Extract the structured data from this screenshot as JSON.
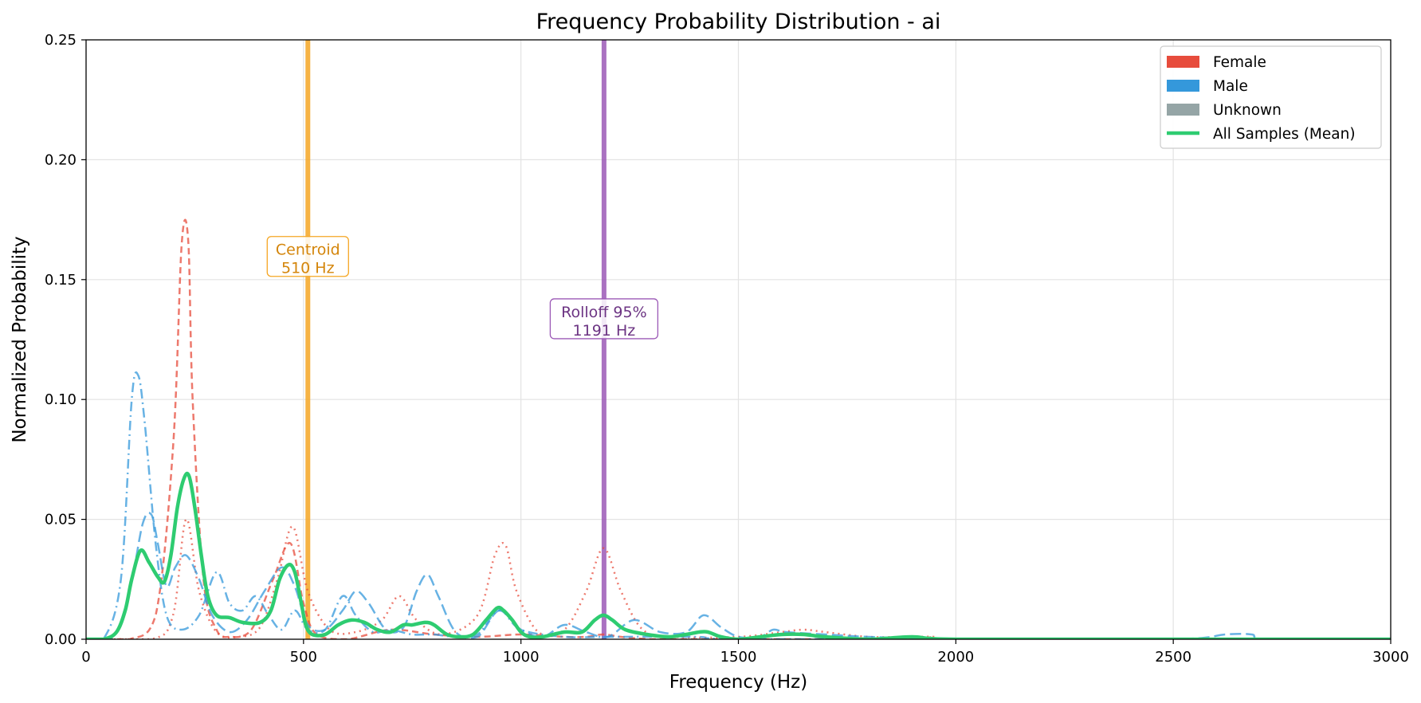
{
  "chart_data": {
    "type": "line",
    "title": "Frequency Probability Distribution - ai",
    "xlabel": "Frequency (Hz)",
    "ylabel": "Normalized Probability",
    "xlim": [
      0,
      3000
    ],
    "ylim": [
      0,
      0.25
    ],
    "xticks": [
      0,
      500,
      1000,
      1500,
      2000,
      2500,
      3000
    ],
    "yticks": [
      0.0,
      0.05,
      0.1,
      0.15,
      0.2,
      0.25
    ],
    "ytick_labels": [
      "0.00",
      "0.05",
      "0.10",
      "0.15",
      "0.20",
      "0.25"
    ],
    "grid": true,
    "legend_position": "top-right",
    "legend": [
      {
        "label": "Female",
        "color": "#e74c3c",
        "kind": "patch"
      },
      {
        "label": "Male",
        "color": "#3498db",
        "kind": "patch"
      },
      {
        "label": "Unknown",
        "color": "#95a5a6",
        "kind": "patch"
      },
      {
        "label": "All Samples (Mean)",
        "color": "#2ecc71",
        "kind": "line"
      }
    ],
    "vlines": [
      {
        "x": 510,
        "color": "#f5a623",
        "text_color": "#d4850a",
        "label": "Centroid\n510 Hz",
        "label_y": 0.159
      },
      {
        "x": 1191,
        "color": "#9b59b6",
        "text_color": "#6c3483",
        "label": "Rolloff 95%\n1191 Hz",
        "label_y": 0.133
      }
    ],
    "series": [
      {
        "group": "Female",
        "color": "#e74c3c",
        "dash": "8,5",
        "width": 2.5,
        "x": [
          0,
          100,
          160,
          200,
          220,
          235,
          245,
          270,
          300,
          330,
          380,
          430,
          470,
          500,
          530,
          600,
          700,
          800,
          900,
          1000,
          1100,
          1150,
          1190,
          1230,
          1300,
          1400,
          1500,
          2000,
          3000
        ],
        "y": [
          0,
          0.0,
          0.01,
          0.08,
          0.165,
          0.166,
          0.1,
          0.025,
          0.004,
          0.001,
          0.004,
          0.025,
          0.04,
          0.015,
          0.002,
          0.0,
          0.004,
          0.002,
          0.001,
          0.002,
          0.001,
          0.001,
          0.002,
          0.001,
          0.0,
          0.0,
          0.0,
          0.0,
          0.0
        ]
      },
      {
        "group": "Female",
        "color": "#e74c3c",
        "dash": "2,5",
        "width": 2.5,
        "x": [
          0,
          150,
          200,
          230,
          260,
          300,
          350,
          400,
          440,
          475,
          510,
          560,
          620,
          680,
          720,
          760,
          820,
          900,
          940,
          965,
          990,
          1040,
          1100,
          1150,
          1190,
          1230,
          1280,
          1350,
          1500,
          1600,
          1650,
          1700,
          1800,
          1900,
          1950,
          2000,
          3000
        ],
        "y": [
          0,
          0.0,
          0.01,
          0.05,
          0.02,
          0.003,
          0.001,
          0.005,
          0.025,
          0.047,
          0.02,
          0.004,
          0.003,
          0.008,
          0.018,
          0.008,
          0.002,
          0.01,
          0.035,
          0.039,
          0.02,
          0.003,
          0.004,
          0.02,
          0.038,
          0.02,
          0.004,
          0.001,
          0.001,
          0.003,
          0.004,
          0.003,
          0.001,
          0.001,
          0.001,
          0.0,
          0.0
        ]
      },
      {
        "group": "Male",
        "color": "#3498db",
        "dash": "12,5,2,5",
        "width": 2.5,
        "x": [
          0,
          40,
          80,
          105,
          120,
          135,
          160,
          185,
          220,
          260,
          300,
          330,
          360,
          390,
          420,
          450,
          480,
          510,
          550,
          590,
          620,
          660,
          700,
          750,
          800,
          850,
          900,
          950,
          1000,
          1100,
          1200,
          1400,
          1600,
          3000
        ],
        "y": [
          0,
          0.0,
          0.025,
          0.1,
          0.11,
          0.09,
          0.04,
          0.01,
          0.004,
          0.01,
          0.028,
          0.015,
          0.012,
          0.018,
          0.01,
          0.004,
          0.012,
          0.004,
          0.004,
          0.018,
          0.01,
          0.003,
          0.004,
          0.002,
          0.002,
          0.001,
          0.002,
          0.012,
          0.004,
          0.001,
          0.001,
          0.001,
          0.0,
          0.0
        ]
      },
      {
        "group": "Male",
        "color": "#3498db",
        "dash": "14,6",
        "width": 2.5,
        "x": [
          0,
          60,
          100,
          130,
          150,
          165,
          185,
          205,
          230,
          260,
          290,
          330,
          370,
          410,
          450,
          480,
          510,
          550,
          590,
          620,
          650,
          690,
          730,
          760,
          785,
          810,
          850,
          900,
          950,
          1000,
          1050,
          1100,
          1150,
          1200,
          1260,
          1320,
          1380,
          1420,
          1460,
          1500,
          1550,
          1580,
          1610,
          1700,
          1800,
          2000,
          2500,
          2620,
          2680,
          2720,
          3000
        ],
        "y": [
          0,
          0.0,
          0.02,
          0.048,
          0.052,
          0.04,
          0.022,
          0.03,
          0.035,
          0.025,
          0.01,
          0.003,
          0.008,
          0.02,
          0.03,
          0.022,
          0.006,
          0.004,
          0.012,
          0.02,
          0.015,
          0.004,
          0.005,
          0.02,
          0.027,
          0.018,
          0.003,
          0.001,
          0.012,
          0.004,
          0.001,
          0.006,
          0.003,
          0.001,
          0.008,
          0.003,
          0.003,
          0.01,
          0.005,
          0.001,
          0.001,
          0.004,
          0.003,
          0.002,
          0.001,
          0.0,
          0.0,
          0.002,
          0.002,
          0.0,
          0.0
        ]
      },
      {
        "group": "All Samples (Mean)",
        "color": "#2ecc71",
        "dash": "",
        "width": 4.5,
        "x": [
          0,
          40,
          70,
          90,
          105,
          125,
          145,
          165,
          180,
          195,
          210,
          225,
          237,
          250,
          265,
          280,
          300,
          330,
          360,
          400,
          425,
          445,
          465,
          480,
          495,
          505,
          520,
          550,
          580,
          610,
          640,
          670,
          700,
          730,
          750,
          780,
          800,
          830,
          860,
          890,
          920,
          945,
          960,
          980,
          1000,
          1020,
          1050,
          1100,
          1140,
          1170,
          1190,
          1210,
          1240,
          1290,
          1340,
          1380,
          1410,
          1430,
          1460,
          1500,
          1550,
          1600,
          1650,
          1700,
          1800,
          1900,
          2000,
          2500,
          3000
        ],
        "y": [
          0,
          0.0,
          0.003,
          0.012,
          0.025,
          0.037,
          0.032,
          0.026,
          0.024,
          0.035,
          0.055,
          0.067,
          0.068,
          0.055,
          0.035,
          0.018,
          0.01,
          0.009,
          0.007,
          0.007,
          0.012,
          0.025,
          0.031,
          0.028,
          0.015,
          0.006,
          0.002,
          0.002,
          0.006,
          0.008,
          0.007,
          0.004,
          0.003,
          0.006,
          0.006,
          0.007,
          0.006,
          0.002,
          0.001,
          0.002,
          0.008,
          0.013,
          0.012,
          0.008,
          0.003,
          0.001,
          0.001,
          0.003,
          0.003,
          0.008,
          0.01,
          0.008,
          0.004,
          0.002,
          0.001,
          0.002,
          0.003,
          0.003,
          0.001,
          0.0,
          0.001,
          0.002,
          0.002,
          0.001,
          0.0,
          0.001,
          0.0,
          0.0,
          0.0
        ]
      }
    ]
  }
}
